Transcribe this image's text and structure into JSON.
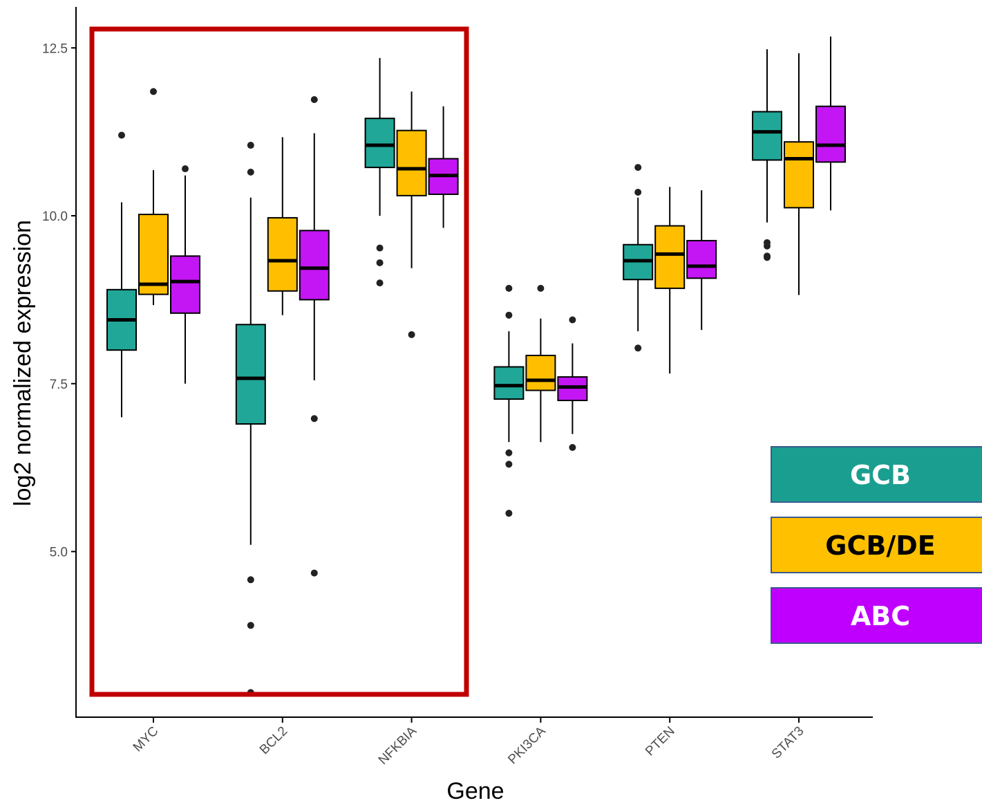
{
  "chart_data": {
    "type": "box",
    "xlabel": "Gene",
    "ylabel": "log2 normalized expression",
    "categories": [
      "MYC",
      "BCL2",
      "NFKBIA",
      "PKI3CA",
      "PTEN",
      "STAT3"
    ],
    "yticks": [
      "5.0",
      "7.5",
      "10.0",
      "12.5"
    ],
    "ylim": [
      2.6,
      13.1
    ],
    "grid": false,
    "highlight_box": {
      "from_category": "MYC",
      "to_category": "NFKBIA",
      "color": "#c00000"
    },
    "legend": {
      "placement": "right",
      "entries": [
        {
          "label": "GCB",
          "color": "#1a9e8f",
          "text_color": "#ffffff"
        },
        {
          "label": "GCB/DE",
          "color": "#ffc000",
          "text_color": "#000000"
        },
        {
          "label": "ABC",
          "color": "#c000ff",
          "text_color": "#ffffff"
        }
      ]
    },
    "series": [
      {
        "name": "GCB",
        "color": "#20a797",
        "boxes": [
          {
            "min": 7.0,
            "q1": 8.0,
            "median": 8.45,
            "q3": 8.9,
            "max": 10.2,
            "outliers": [
              11.2
            ]
          },
          {
            "min": 5.1,
            "q1": 6.9,
            "median": 7.58,
            "q3": 8.38,
            "max": 10.27,
            "outliers": [
              11.05,
              10.65,
              4.58,
              3.9,
              2.9
            ]
          },
          {
            "min": 10.0,
            "q1": 10.72,
            "median": 11.05,
            "q3": 11.45,
            "max": 12.35,
            "outliers": [
              9.52,
              9.3,
              9.0
            ]
          },
          {
            "min": 6.63,
            "q1": 7.27,
            "median": 7.47,
            "q3": 7.75,
            "max": 8.28,
            "outliers": [
              8.92,
              8.52,
              6.47,
              6.3,
              5.57
            ]
          },
          {
            "min": 8.28,
            "q1": 9.05,
            "median": 9.33,
            "q3": 9.57,
            "max": 10.27,
            "outliers": [
              10.72,
              10.35,
              8.03
            ]
          },
          {
            "min": 9.9,
            "q1": 10.83,
            "median": 11.25,
            "q3": 11.55,
            "max": 12.48,
            "outliers": [
              9.6,
              9.55,
              9.4,
              9.38
            ]
          }
        ]
      },
      {
        "name": "GCB/DE",
        "color": "#ffbf00",
        "boxes": [
          {
            "min": 8.67,
            "q1": 8.83,
            "median": 8.98,
            "q3": 10.02,
            "max": 10.68,
            "outliers": [
              11.85
            ]
          },
          {
            "min": 8.52,
            "q1": 8.88,
            "median": 9.33,
            "q3": 9.97,
            "max": 11.17,
            "outliers": []
          },
          {
            "min": 9.22,
            "q1": 10.3,
            "median": 10.7,
            "q3": 11.27,
            "max": 11.85,
            "outliers": [
              8.23
            ]
          },
          {
            "min": 6.63,
            "q1": 7.4,
            "median": 7.55,
            "q3": 7.92,
            "max": 8.47,
            "outliers": [
              8.92
            ]
          },
          {
            "min": 7.65,
            "q1": 8.92,
            "median": 9.43,
            "q3": 9.85,
            "max": 10.43,
            "outliers": []
          },
          {
            "min": 8.82,
            "q1": 10.12,
            "median": 10.85,
            "q3": 11.1,
            "max": 12.42,
            "outliers": []
          }
        ]
      },
      {
        "name": "ABC",
        "color": "#c415f5",
        "boxes": [
          {
            "min": 7.5,
            "q1": 8.55,
            "median": 9.02,
            "q3": 9.4,
            "max": 10.6,
            "outliers": [
              10.7
            ]
          },
          {
            "min": 7.55,
            "q1": 8.75,
            "median": 9.22,
            "q3": 9.78,
            "max": 11.23,
            "outliers": [
              11.73,
              6.98,
              4.68
            ]
          },
          {
            "min": 9.82,
            "q1": 10.32,
            "median": 10.6,
            "q3": 10.85,
            "max": 11.63,
            "outliers": []
          },
          {
            "min": 6.75,
            "q1": 7.25,
            "median": 7.45,
            "q3": 7.6,
            "max": 8.1,
            "outliers": [
              8.45,
              6.55
            ]
          },
          {
            "min": 8.3,
            "q1": 9.07,
            "median": 9.25,
            "q3": 9.63,
            "max": 10.38,
            "outliers": []
          },
          {
            "min": 10.08,
            "q1": 10.8,
            "median": 11.05,
            "q3": 11.63,
            "max": 12.67,
            "outliers": []
          }
        ]
      }
    ]
  }
}
